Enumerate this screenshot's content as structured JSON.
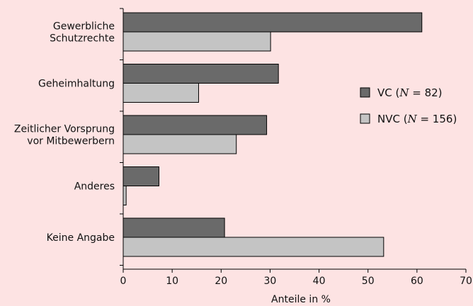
{
  "chart_data": {
    "type": "bar",
    "orientation": "horizontal",
    "categories": [
      [
        "Gewerbliche",
        "Schutzrechte"
      ],
      [
        "Geheimhaltung"
      ],
      [
        "Zeitlicher Vorsprung",
        "vor Mitbewerbern"
      ],
      [
        "Anderes"
      ],
      [
        "Keine Angabe"
      ]
    ],
    "series": [
      {
        "name": "VC",
        "legend_parts": [
          "VC (",
          "N",
          " = 82)"
        ],
        "color": "#6a6a6a",
        "values": [
          61,
          31.7,
          29.3,
          7.3,
          20.7
        ]
      },
      {
        "name": "NVC",
        "legend_parts": [
          "NVC (",
          "N",
          " = 156)"
        ],
        "color": "#c4c4c4",
        "values": [
          30.1,
          15.4,
          23.1,
          0.6,
          53.2
        ]
      }
    ],
    "xlabel": "Anteile in %",
    "xlim": [
      0,
      70
    ],
    "xticks": [
      0,
      10,
      20,
      30,
      40,
      50,
      60,
      70
    ],
    "grid": false,
    "legend_position": "right"
  }
}
